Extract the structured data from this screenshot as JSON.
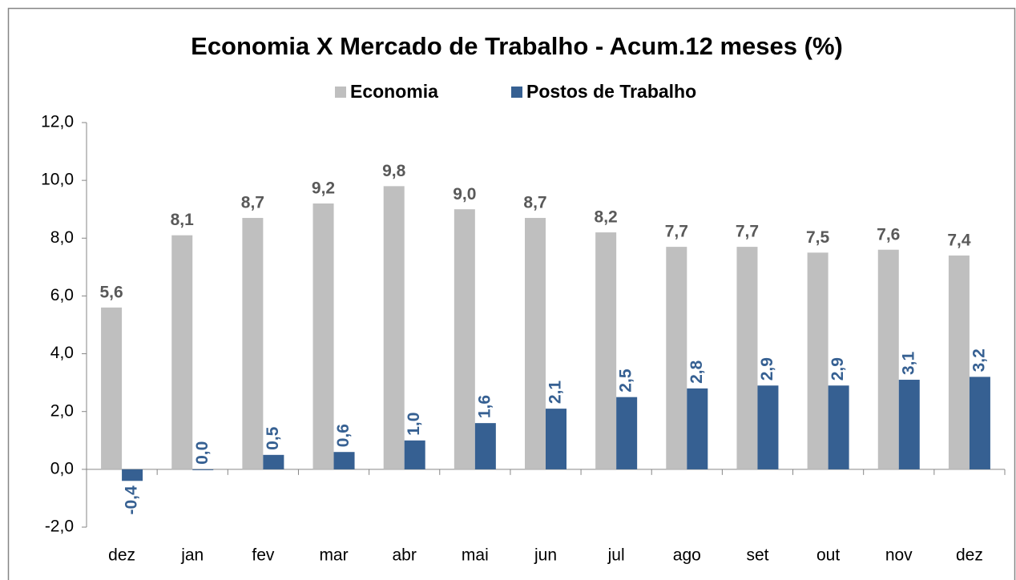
{
  "chart_data": {
    "type": "bar",
    "title": "Economia X Mercado de Trabalho - Acum.12 meses (%)",
    "categories": [
      "dez",
      "jan",
      "fev",
      "mar",
      "abr",
      "mai",
      "jun",
      "jul",
      "ago",
      "set",
      "out",
      "nov",
      "dez"
    ],
    "series": [
      {
        "name": "Economia",
        "color": "#bfbfbf",
        "values": [
          5.6,
          8.1,
          8.7,
          9.2,
          9.8,
          9.0,
          8.7,
          8.2,
          7.7,
          7.7,
          7.5,
          7.6,
          7.4
        ],
        "value_labels": [
          "5,6",
          "8,1",
          "8,7",
          "9,2",
          "9,8",
          "9,0",
          "8,7",
          "8,2",
          "7,7",
          "7,7",
          "7,5",
          "7,6",
          "7,4"
        ]
      },
      {
        "name": "Postos de Trabalho",
        "color": "#366092",
        "values": [
          -0.4,
          0.0,
          0.5,
          0.6,
          1.0,
          1.6,
          2.1,
          2.5,
          2.8,
          2.9,
          2.9,
          3.1,
          3.2
        ],
        "value_labels": [
          "-0,4",
          "0,0",
          "0,5",
          "0,6",
          "1,0",
          "1,6",
          "2,1",
          "2,5",
          "2,8",
          "2,9",
          "2,9",
          "3,1",
          "3,2"
        ]
      }
    ],
    "ylim": [
      -2,
      12
    ],
    "yticks": [
      {
        "value": -2,
        "label": "-2,0"
      },
      {
        "value": 0,
        "label": "0,0"
      },
      {
        "value": 2,
        "label": "2,0"
      },
      {
        "value": 4,
        "label": "4,0"
      },
      {
        "value": 6,
        "label": "6,0"
      },
      {
        "value": 8,
        "label": "8,0"
      },
      {
        "value": 10,
        "label": "10,0"
      },
      {
        "value": 12,
        "label": "12,0"
      }
    ],
    "legend": "top"
  }
}
